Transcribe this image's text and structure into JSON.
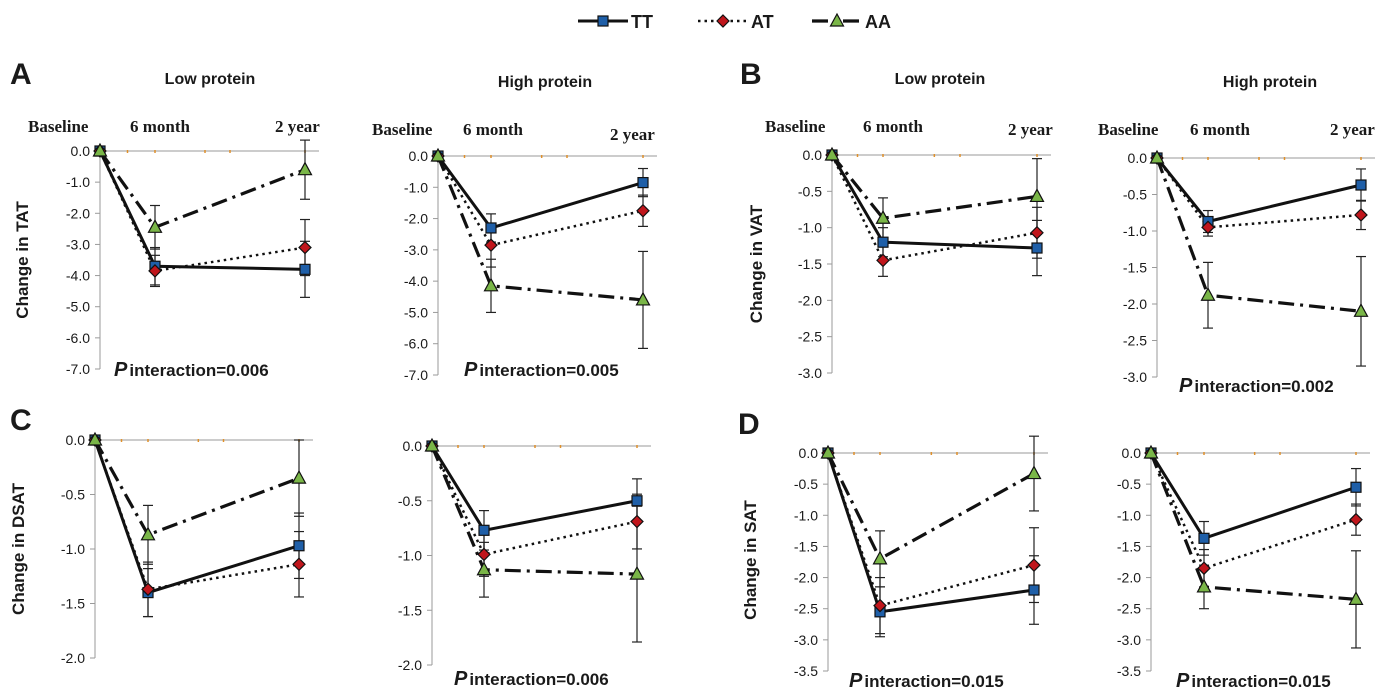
{
  "legend": [
    {
      "name": "TT",
      "style": "solid",
      "marker": "square",
      "color": "#1f5fa8"
    },
    {
      "name": "AT",
      "style": "dotted",
      "marker": "diamond",
      "color": "#c0161c"
    },
    {
      "name": "AA",
      "style": "dashdot",
      "marker": "triangle",
      "color": "#7ab648"
    }
  ],
  "time_labels": [
    "Baseline",
    "6 month",
    "2 year"
  ],
  "p_prefix": "P",
  "chart_data": [
    {
      "panel": "A",
      "title": "Low protein",
      "type": "line",
      "ylabel": "Change in TAT",
      "ylim": [
        -7.0,
        0.0
      ],
      "yticks": [
        0.0,
        -1.0,
        -2.0,
        -3.0,
        -4.0,
        -5.0,
        -6.0,
        -7.0
      ],
      "tick_decimals": 1,
      "p_text": "interaction=0.006",
      "series": [
        {
          "name": "TT",
          "values": [
            0.0,
            -3.7,
            -3.8
          ],
          "err": [
            0,
            0.6,
            0.9
          ]
        },
        {
          "name": "AT",
          "values": [
            0.0,
            -3.85,
            -3.1
          ],
          "err": [
            0,
            0.5,
            0.9
          ]
        },
        {
          "name": "AA",
          "values": [
            0.0,
            -2.45,
            -0.6
          ],
          "err": [
            0,
            0.7,
            0.95
          ]
        }
      ]
    },
    {
      "panel": "",
      "title": "High protein",
      "type": "line",
      "ylabel": "",
      "ylim": [
        -7.0,
        0.0
      ],
      "yticks": [
        0.0,
        -1.0,
        -2.0,
        -3.0,
        -4.0,
        -5.0,
        -6.0,
        -7.0
      ],
      "tick_decimals": 1,
      "p_text": "interaction=0.005",
      "series": [
        {
          "name": "TT",
          "values": [
            0.0,
            -2.3,
            -0.85
          ],
          "err": [
            0,
            0.45,
            0.45
          ]
        },
        {
          "name": "AT",
          "values": [
            0.0,
            -2.85,
            -1.75
          ],
          "err": [
            0,
            0.7,
            0.5
          ]
        },
        {
          "name": "AA",
          "values": [
            0.0,
            -4.15,
            -4.6
          ],
          "err": [
            0,
            0.85,
            1.55
          ]
        }
      ]
    },
    {
      "panel": "B",
      "title": "Low protein",
      "type": "line",
      "ylabel": "Change in VAT",
      "ylim": [
        -3.0,
        0.0
      ],
      "yticks": [
        0.0,
        -0.5,
        -1.0,
        -1.5,
        -2.0,
        -2.5,
        -3.0
      ],
      "tick_decimals": 1,
      "p_text": "",
      "series": [
        {
          "name": "TT",
          "values": [
            0.0,
            -1.2,
            -1.28
          ],
          "err": [
            0,
            0.2,
            0.38
          ]
        },
        {
          "name": "AT",
          "values": [
            0.0,
            -1.45,
            -1.07
          ],
          "err": [
            0,
            0.22,
            0.35
          ]
        },
        {
          "name": "AA",
          "values": [
            0.0,
            -0.87,
            -0.57
          ],
          "err": [
            0,
            0.28,
            0.52
          ]
        }
      ]
    },
    {
      "panel": "",
      "title": "High protein",
      "type": "line",
      "ylabel": "",
      "ylim": [
        -3.0,
        0.0
      ],
      "yticks": [
        0.0,
        -0.5,
        -1.0,
        -1.5,
        -2.0,
        -2.5,
        -3.0
      ],
      "tick_decimals": 1,
      "p_text": "interaction=0.002",
      "series": [
        {
          "name": "TT",
          "values": [
            0.0,
            -0.87,
            -0.37
          ],
          "err": [
            0,
            0.15,
            0.22
          ]
        },
        {
          "name": "AT",
          "values": [
            0.0,
            -0.95,
            -0.78
          ],
          "err": [
            0,
            0.12,
            0.2
          ]
        },
        {
          "name": "AA",
          "values": [
            0.0,
            -1.88,
            -2.1
          ],
          "err": [
            0,
            0.45,
            0.75
          ]
        }
      ]
    },
    {
      "panel": "C",
      "title": "",
      "type": "line",
      "ylabel": "Change in DSAT",
      "ylim": [
        -2.0,
        0.0
      ],
      "yticks": [
        0.0,
        -0.5,
        -1.0,
        -1.5,
        -2.0
      ],
      "tick_decimals": 1,
      "p_text": "",
      "series": [
        {
          "name": "TT",
          "values": [
            0.0,
            -1.4,
            -0.97
          ],
          "err": [
            0,
            0.22,
            0.3
          ]
        },
        {
          "name": "AT",
          "values": [
            0.0,
            -1.37,
            -1.14
          ],
          "err": [
            0,
            0.25,
            0.3
          ]
        },
        {
          "name": "AA",
          "values": [
            0.0,
            -0.87,
            -0.35
          ],
          "err": [
            0,
            0.27,
            0.35
          ]
        }
      ]
    },
    {
      "panel": "",
      "title": "",
      "type": "line",
      "ylabel": "",
      "ylim": [
        -2.0,
        0.0
      ],
      "yticks": [
        0.0,
        -0.5,
        -1.0,
        -1.5,
        -2.0
      ],
      "tick_decimals": 1,
      "p_text": "interaction=0.006",
      "series": [
        {
          "name": "TT",
          "values": [
            0.0,
            -0.77,
            -0.5
          ],
          "err": [
            0,
            0.18,
            0.2
          ]
        },
        {
          "name": "AT",
          "values": [
            0.0,
            -0.99,
            -0.69
          ],
          "err": [
            0,
            0.2,
            0.25
          ]
        },
        {
          "name": "AA",
          "values": [
            0.0,
            -1.13,
            -1.17
          ],
          "err": [
            0,
            0.25,
            0.62
          ]
        }
      ]
    },
    {
      "panel": "D",
      "title": "",
      "type": "line",
      "ylabel": "Change in SAT",
      "ylim": [
        -3.5,
        0.0
      ],
      "yticks": [
        0.0,
        -0.5,
        -1.0,
        -1.5,
        -2.0,
        -2.5,
        -3.0,
        -3.5
      ],
      "tick_decimals": 1,
      "p_text": "interaction=0.015",
      "series": [
        {
          "name": "TT",
          "values": [
            0.0,
            -2.55,
            -2.2
          ],
          "err": [
            0,
            0.4,
            0.55
          ]
        },
        {
          "name": "AT",
          "values": [
            0.0,
            -2.45,
            -1.8
          ],
          "err": [
            0,
            0.45,
            0.6
          ]
        },
        {
          "name": "AA",
          "values": [
            0.0,
            -1.7,
            -0.33
          ],
          "err": [
            0,
            0.45,
            0.6
          ]
        }
      ]
    },
    {
      "panel": "",
      "title": "",
      "type": "line",
      "ylabel": "",
      "ylim": [
        -3.5,
        0.0
      ],
      "yticks": [
        0.0,
        -0.5,
        -1.0,
        -1.5,
        -2.0,
        -2.5,
        -3.0,
        -3.5
      ],
      "tick_decimals": 1,
      "p_text": "interaction=0.015",
      "series": [
        {
          "name": "TT",
          "values": [
            0.0,
            -1.37,
            -0.55
          ],
          "err": [
            0,
            0.27,
            0.3
          ]
        },
        {
          "name": "AT",
          "values": [
            0.0,
            -1.85,
            -1.07
          ],
          "err": [
            0,
            0.3,
            0.25
          ]
        },
        {
          "name": "AA",
          "values": [
            0.0,
            -2.15,
            -2.35
          ],
          "err": [
            0,
            0.35,
            0.78
          ]
        }
      ]
    }
  ]
}
